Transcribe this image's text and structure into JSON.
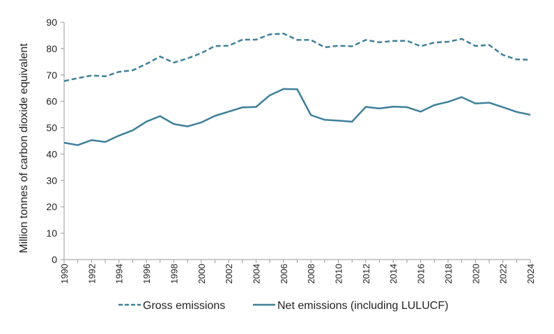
{
  "chart_data": {
    "type": "line",
    "title": "",
    "xlabel": "",
    "ylabel": "Million tonnes of carbon dioxide equivalent",
    "ylim": [
      0,
      90
    ],
    "yticks": [
      0,
      10,
      20,
      30,
      40,
      50,
      60,
      70,
      80,
      90
    ],
    "xlim": [
      1990,
      2024
    ],
    "xticks": [
      1990,
      1992,
      1994,
      1996,
      1998,
      2000,
      2002,
      2004,
      2006,
      2008,
      2010,
      2012,
      2014,
      2016,
      2018,
      2020,
      2022,
      2024
    ],
    "grid": false,
    "legend_position": "bottom",
    "color": "#3d7f9a",
    "x": [
      1990,
      1991,
      1992,
      1993,
      1994,
      1995,
      1996,
      1997,
      1998,
      1999,
      2000,
      2001,
      2002,
      2003,
      2004,
      2005,
      2006,
      2007,
      2008,
      2009,
      2010,
      2011,
      2012,
      2013,
      2014,
      2015,
      2016,
      2017,
      2018,
      2019,
      2020,
      2021,
      2022,
      2023,
      2024
    ],
    "series": [
      {
        "name": "Gross emissions",
        "style": "dashed",
        "values": [
          67.7,
          68.8,
          69.8,
          69.5,
          71.2,
          71.8,
          74.2,
          77.0,
          74.7,
          76.3,
          78.3,
          81.0,
          81.1,
          83.4,
          83.4,
          85.4,
          85.7,
          83.3,
          83.3,
          80.5,
          81.1,
          80.9,
          83.3,
          82.4,
          82.9,
          83.0,
          80.9,
          82.3,
          82.6,
          83.7,
          81.0,
          81.4,
          77.6,
          75.9,
          75.8
        ]
      },
      {
        "name": "Net emissions (including LULUCF)",
        "style": "solid",
        "values": [
          44.3,
          43.4,
          45.3,
          44.6,
          47.0,
          49.0,
          52.3,
          54.4,
          51.4,
          50.5,
          52.0,
          54.5,
          56.1,
          57.7,
          57.9,
          62.3,
          64.7,
          64.6,
          54.8,
          53.0,
          52.7,
          52.3,
          57.9,
          57.3,
          58.0,
          57.8,
          56.1,
          58.6,
          59.8,
          61.6,
          59.2,
          59.5,
          57.8,
          56.0,
          54.9
        ]
      }
    ]
  }
}
